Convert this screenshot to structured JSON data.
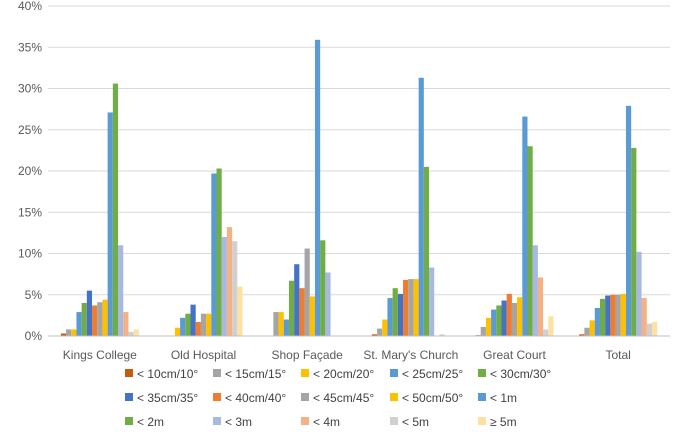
{
  "chart_data": {
    "type": "bar",
    "categories": [
      "Kings College",
      "Old Hospital",
      "Shop Façade",
      "St. Mary's Church",
      "Great Court",
      "Total"
    ],
    "ylim": [
      0,
      40
    ],
    "yticks": [
      "0%",
      "5%",
      "10%",
      "15%",
      "20%",
      "25%",
      "30%",
      "35%",
      "40%"
    ],
    "y_unit": "%",
    "grid": true,
    "legend_position": "bottom",
    "series": [
      {
        "name": "< 10cm/10°",
        "color": "#C55A11",
        "values": [
          0.3,
          0.0,
          0.0,
          0.2,
          0.1,
          0.2
        ]
      },
      {
        "name": "< 15cm/15°",
        "color": "#A5A5A5",
        "values": [
          0.8,
          0.0,
          2.9,
          0.9,
          1.1,
          1.0
        ]
      },
      {
        "name": "< 20cm/20°",
        "color": "#FFC000",
        "values": [
          0.8,
          1.0,
          2.9,
          2.0,
          2.2,
          1.9
        ]
      },
      {
        "name": "< 25cm/25°",
        "color": "#5B9BD5",
        "values": [
          2.9,
          2.2,
          2.0,
          4.6,
          3.2,
          3.4
        ]
      },
      {
        "name": "< 30cm/30°",
        "color": "#70AD47",
        "values": [
          4.0,
          2.7,
          6.7,
          5.8,
          3.7,
          4.5
        ]
      },
      {
        "name": "< 35cm/35°",
        "color": "#4472C4",
        "values": [
          5.5,
          3.8,
          8.7,
          5.1,
          4.3,
          4.9
        ]
      },
      {
        "name": "< 40cm/40°",
        "color": "#ED7D31",
        "values": [
          3.7,
          1.7,
          5.8,
          6.8,
          5.1,
          5.0
        ]
      },
      {
        "name": "< 45cm/45°",
        "color": "#A5A5A5",
        "values": [
          4.1,
          2.7,
          10.6,
          6.9,
          4.0,
          5.0
        ]
      },
      {
        "name": "< 50cm/50°",
        "color": "#FFC000",
        "values": [
          4.4,
          2.7,
          4.8,
          6.9,
          4.7,
          5.1
        ]
      },
      {
        "name": "< 1m",
        "color": "#5B9BD5",
        "values": [
          27.1,
          19.7,
          35.9,
          31.3,
          26.6,
          27.9
        ]
      },
      {
        "name": "< 2m",
        "color": "#70AD47",
        "values": [
          30.6,
          20.3,
          11.6,
          20.5,
          23.0,
          22.8
        ]
      },
      {
        "name": "< 3m",
        "color": "#A9B8E0",
        "values": [
          11.0,
          12.0,
          7.7,
          8.3,
          11.0,
          10.2
        ]
      },
      {
        "name": "< 4m",
        "color": "#F4B183",
        "values": [
          2.9,
          13.2,
          0.0,
          0.0,
          7.1,
          4.6
        ]
      },
      {
        "name": "< 5m",
        "color": "#D0D0D0",
        "values": [
          0.5,
          11.5,
          0.0,
          0.2,
          0.8,
          1.5
        ]
      },
      {
        "name": "≥ 5m",
        "color": "#FFE0A3",
        "values": [
          0.8,
          6.0,
          0.0,
          0.0,
          2.4,
          1.7
        ]
      }
    ]
  }
}
